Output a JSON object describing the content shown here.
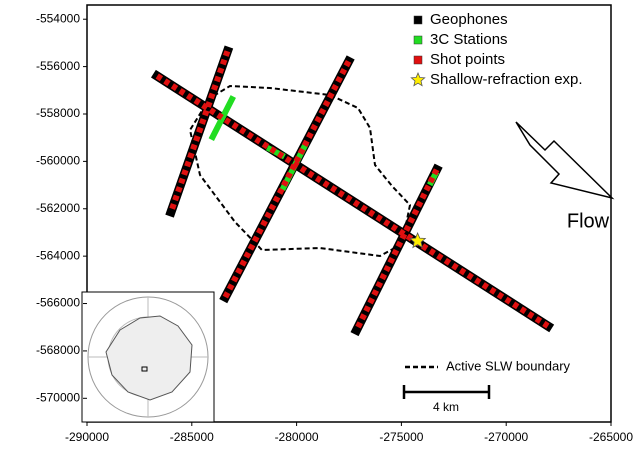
{
  "chart_data": {
    "type": "map",
    "xlim": [
      -290000,
      -265000
    ],
    "ylim": [
      -571000,
      -553400
    ],
    "xticks": [
      -290000,
      -285000,
      -280000,
      -275000,
      -270000,
      -265000
    ],
    "yticks": [
      -570000,
      -568000,
      -566000,
      -564000,
      -562000,
      -560000,
      -558000,
      -556000,
      -554000
    ],
    "series": [
      {
        "name": "Geophones",
        "color": "#000000",
        "x": [
          -286650,
          -268010,
          null,
          -283300,
          -285990,
          null,
          -277520,
          -283400,
          null,
          -273320,
          -277140
        ],
        "y": [
          -556400,
          -566950,
          null,
          -555350,
          -562130,
          null,
          -555780,
          -565730,
          null,
          -560350,
          -567120
        ]
      },
      {
        "name": "3C Stations",
        "color": "#22dd22",
        "x": [
          -283020,
          -284070,
          null,
          -279530,
          -280680,
          null,
          -281400,
          -280580,
          null,
          -273320,
          -273650
        ],
        "y": [
          -557260,
          -559080,
          null,
          -559210,
          -561200,
          null,
          -559420,
          -559800,
          null,
          -560440,
          -560990
        ]
      },
      {
        "name": "Shot points",
        "color": "#e01010",
        "x": [
          -286650,
          -268010,
          null,
          -283300,
          -285990,
          null,
          -277520,
          -283400,
          null,
          -273320,
          -277140
        ],
        "y": [
          -556400,
          -566950,
          null,
          -555350,
          -562130,
          null,
          -555780,
          -565730,
          null,
          -560350,
          -567120
        ]
      },
      {
        "name": "Shallow-refraction exp.",
        "color": "#ffee00",
        "x": [
          -274225
        ],
        "y": [
          -563360
        ]
      }
    ],
    "flow_label": "Flow",
    "boundary_label": "Active SLW boundary",
    "scale_label": "4 km"
  }
}
